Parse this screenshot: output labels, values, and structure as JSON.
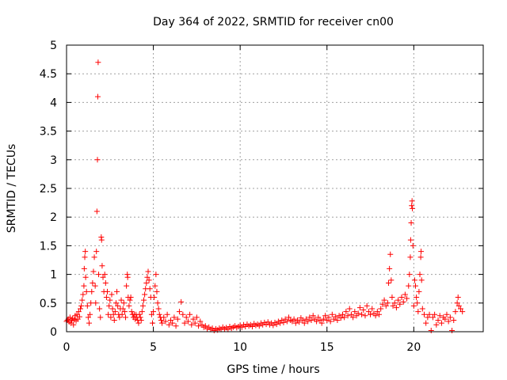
{
  "chart_data": {
    "type": "scatter",
    "title": "Day 364 of 2022, SRMTID for receiver cn00",
    "xlabel": "GPS time / hours",
    "ylabel": "SRMTID / TECUs",
    "xlim": [
      0,
      24
    ],
    "ylim": [
      0,
      5
    ],
    "xticks": [
      0,
      5,
      10,
      15,
      20
    ],
    "xtick_labels": [
      "0",
      "5",
      "10",
      "15",
      "20"
    ],
    "yticks": [
      0,
      0.5,
      1,
      1.5,
      2,
      2.5,
      3,
      3.5,
      4,
      4.5,
      5
    ],
    "ytick_labels": [
      "0",
      "0.5",
      "1",
      "1.5",
      "2",
      "2.5",
      "3",
      "3.5",
      "4",
      "4.5",
      "5"
    ],
    "grid": true,
    "marker": "+",
    "color": "#ff0000",
    "series": [
      {
        "name": "cn00",
        "points": [
          [
            0.0,
            0.18
          ],
          [
            0.05,
            0.2
          ],
          [
            0.1,
            0.22
          ],
          [
            0.15,
            0.17
          ],
          [
            0.2,
            0.25
          ],
          [
            0.25,
            0.15
          ],
          [
            0.3,
            0.2
          ],
          [
            0.35,
            0.23
          ],
          [
            0.4,
            0.12
          ],
          [
            0.45,
            0.21
          ],
          [
            0.5,
            0.28
          ],
          [
            0.55,
            0.19
          ],
          [
            0.6,
            0.3
          ],
          [
            0.65,
            0.22
          ],
          [
            0.7,
            0.35
          ],
          [
            0.75,
            0.26
          ],
          [
            0.8,
            0.4
          ],
          [
            0.85,
            0.45
          ],
          [
            0.9,
            0.55
          ],
          [
            0.95,
            0.65
          ],
          [
            1.0,
            0.8
          ],
          [
            1.02,
            1.1
          ],
          [
            1.05,
            1.3
          ],
          [
            1.08,
            1.4
          ],
          [
            1.1,
            0.95
          ],
          [
            1.15,
            0.7
          ],
          [
            1.2,
            0.45
          ],
          [
            1.25,
            0.25
          ],
          [
            1.3,
            0.15
          ],
          [
            1.35,
            0.3
          ],
          [
            1.4,
            0.5
          ],
          [
            1.45,
            0.7
          ],
          [
            1.5,
            0.85
          ],
          [
            1.55,
            1.05
          ],
          [
            1.6,
            1.3
          ],
          [
            1.65,
            0.8
          ],
          [
            1.68,
            0.5
          ],
          [
            1.72,
            1.4
          ],
          [
            1.75,
            2.1
          ],
          [
            1.78,
            3.0
          ],
          [
            1.8,
            4.1
          ],
          [
            1.82,
            4.7
          ],
          [
            1.85,
            1.0
          ],
          [
            1.9,
            0.4
          ],
          [
            1.95,
            0.25
          ],
          [
            2.0,
            1.65
          ],
          [
            2.02,
            1.6
          ],
          [
            2.05,
            1.15
          ],
          [
            2.1,
            0.95
          ],
          [
            2.15,
            0.7
          ],
          [
            2.2,
            1.0
          ],
          [
            2.25,
            0.85
          ],
          [
            2.3,
            0.6
          ],
          [
            2.35,
            0.7
          ],
          [
            2.4,
            0.3
          ],
          [
            2.45,
            0.45
          ],
          [
            2.5,
            0.55
          ],
          [
            2.55,
            0.25
          ],
          [
            2.6,
            0.65
          ],
          [
            2.65,
            0.4
          ],
          [
            2.7,
            0.3
          ],
          [
            2.75,
            0.2
          ],
          [
            2.8,
            0.35
          ],
          [
            2.85,
            0.5
          ],
          [
            2.9,
            0.7
          ],
          [
            2.95,
            0.45
          ],
          [
            3.0,
            0.3
          ],
          [
            3.05,
            0.25
          ],
          [
            3.1,
            0.4
          ],
          [
            3.15,
            0.55
          ],
          [
            3.2,
            0.3
          ],
          [
            3.25,
            0.4
          ],
          [
            3.3,
            0.5
          ],
          [
            3.35,
            0.35
          ],
          [
            3.4,
            0.25
          ],
          [
            3.45,
            0.8
          ],
          [
            3.5,
            1.0
          ],
          [
            3.52,
            0.95
          ],
          [
            3.55,
            0.6
          ],
          [
            3.6,
            0.45
          ],
          [
            3.65,
            0.55
          ],
          [
            3.7,
            0.6
          ],
          [
            3.75,
            0.35
          ],
          [
            3.8,
            0.3
          ],
          [
            3.85,
            0.25
          ],
          [
            3.9,
            0.3
          ],
          [
            3.95,
            0.22
          ],
          [
            4.0,
            0.3
          ],
          [
            4.05,
            0.25
          ],
          [
            4.1,
            0.2
          ],
          [
            4.15,
            0.15
          ],
          [
            4.2,
            0.3
          ],
          [
            4.25,
            0.25
          ],
          [
            4.3,
            0.2
          ],
          [
            4.35,
            0.35
          ],
          [
            4.4,
            0.45
          ],
          [
            4.45,
            0.55
          ],
          [
            4.5,
            0.65
          ],
          [
            4.55,
            0.75
          ],
          [
            4.6,
            0.85
          ],
          [
            4.65,
            0.95
          ],
          [
            4.7,
            1.05
          ],
          [
            4.75,
            0.9
          ],
          [
            4.8,
            0.75
          ],
          [
            4.85,
            0.6
          ],
          [
            4.9,
            0.3
          ],
          [
            4.95,
            0.15
          ],
          [
            5.0,
            0.35
          ],
          [
            5.05,
            0.6
          ],
          [
            5.1,
            0.8
          ],
          [
            5.15,
            1.0
          ],
          [
            5.2,
            0.7
          ],
          [
            5.25,
            0.5
          ],
          [
            5.3,
            0.4
          ],
          [
            5.35,
            0.3
          ],
          [
            5.4,
            0.25
          ],
          [
            5.45,
            0.2
          ],
          [
            5.5,
            0.15
          ],
          [
            5.6,
            0.25
          ],
          [
            5.7,
            0.18
          ],
          [
            5.8,
            0.3
          ],
          [
            5.9,
            0.12
          ],
          [
            6.0,
            0.2
          ],
          [
            6.1,
            0.15
          ],
          [
            6.2,
            0.25
          ],
          [
            6.3,
            0.1
          ],
          [
            6.4,
            0.22
          ],
          [
            6.5,
            0.35
          ],
          [
            6.6,
            0.52
          ],
          [
            6.7,
            0.3
          ],
          [
            6.8,
            0.15
          ],
          [
            6.9,
            0.25
          ],
          [
            7.0,
            0.18
          ],
          [
            7.1,
            0.3
          ],
          [
            7.2,
            0.12
          ],
          [
            7.3,
            0.22
          ],
          [
            7.4,
            0.15
          ],
          [
            7.5,
            0.25
          ],
          [
            7.6,
            0.1
          ],
          [
            7.7,
            0.18
          ],
          [
            7.8,
            0.12
          ],
          [
            7.9,
            0.08
          ],
          [
            8.0,
            0.1
          ],
          [
            8.1,
            0.05
          ],
          [
            8.2,
            0.08
          ],
          [
            8.3,
            0.04
          ],
          [
            8.4,
            0.06
          ],
          [
            8.5,
            0.02
          ],
          [
            8.6,
            0.05
          ],
          [
            8.7,
            0.03
          ],
          [
            8.8,
            0.06
          ],
          [
            8.9,
            0.04
          ],
          [
            9.0,
            0.08
          ],
          [
            9.1,
            0.05
          ],
          [
            9.2,
            0.07
          ],
          [
            9.3,
            0.04
          ],
          [
            9.4,
            0.09
          ],
          [
            9.5,
            0.06
          ],
          [
            9.6,
            0.08
          ],
          [
            9.7,
            0.1
          ],
          [
            9.8,
            0.07
          ],
          [
            9.9,
            0.09
          ],
          [
            10.0,
            0.11
          ],
          [
            10.1,
            0.08
          ],
          [
            10.2,
            0.12
          ],
          [
            10.3,
            0.09
          ],
          [
            10.4,
            0.13
          ],
          [
            10.5,
            0.1
          ],
          [
            10.6,
            0.12
          ],
          [
            10.7,
            0.09
          ],
          [
            10.8,
            0.14
          ],
          [
            10.9,
            0.11
          ],
          [
            11.0,
            0.13
          ],
          [
            11.1,
            0.1
          ],
          [
            11.2,
            0.15
          ],
          [
            11.3,
            0.12
          ],
          [
            11.4,
            0.16
          ],
          [
            11.5,
            0.13
          ],
          [
            11.6,
            0.17
          ],
          [
            11.7,
            0.12
          ],
          [
            11.8,
            0.15
          ],
          [
            11.9,
            0.11
          ],
          [
            12.0,
            0.16
          ],
          [
            12.1,
            0.13
          ],
          [
            12.2,
            0.18
          ],
          [
            12.3,
            0.15
          ],
          [
            12.4,
            0.2
          ],
          [
            12.5,
            0.16
          ],
          [
            12.6,
            0.22
          ],
          [
            12.7,
            0.18
          ],
          [
            12.8,
            0.25
          ],
          [
            12.9,
            0.2
          ],
          [
            13.0,
            0.18
          ],
          [
            13.1,
            0.22
          ],
          [
            13.2,
            0.15
          ],
          [
            13.3,
            0.2
          ],
          [
            13.4,
            0.17
          ],
          [
            13.5,
            0.24
          ],
          [
            13.6,
            0.2
          ],
          [
            13.7,
            0.15
          ],
          [
            13.8,
            0.22
          ],
          [
            13.9,
            0.18
          ],
          [
            14.0,
            0.25
          ],
          [
            14.1,
            0.2
          ],
          [
            14.2,
            0.28
          ],
          [
            14.3,
            0.22
          ],
          [
            14.4,
            0.18
          ],
          [
            14.5,
            0.25
          ],
          [
            14.6,
            0.2
          ],
          [
            14.7,
            0.15
          ],
          [
            14.8,
            0.22
          ],
          [
            14.9,
            0.28
          ],
          [
            15.0,
            0.2
          ],
          [
            15.1,
            0.25
          ],
          [
            15.2,
            0.18
          ],
          [
            15.3,
            0.3
          ],
          [
            15.4,
            0.22
          ],
          [
            15.5,
            0.26
          ],
          [
            15.6,
            0.2
          ],
          [
            15.7,
            0.28
          ],
          [
            15.8,
            0.24
          ],
          [
            15.9,
            0.3
          ],
          [
            16.0,
            0.25
          ],
          [
            16.1,
            0.35
          ],
          [
            16.2,
            0.28
          ],
          [
            16.3,
            0.4
          ],
          [
            16.4,
            0.3
          ],
          [
            16.5,
            0.25
          ],
          [
            16.6,
            0.35
          ],
          [
            16.7,
            0.28
          ],
          [
            16.8,
            0.32
          ],
          [
            16.9,
            0.42
          ],
          [
            17.0,
            0.3
          ],
          [
            17.1,
            0.38
          ],
          [
            17.2,
            0.28
          ],
          [
            17.3,
            0.45
          ],
          [
            17.4,
            0.35
          ],
          [
            17.5,
            0.3
          ],
          [
            17.6,
            0.4
          ],
          [
            17.7,
            0.32
          ],
          [
            17.8,
            0.28
          ],
          [
            17.9,
            0.35
          ],
          [
            18.0,
            0.3
          ],
          [
            18.1,
            0.4
          ],
          [
            18.2,
            0.48
          ],
          [
            18.3,
            0.55
          ],
          [
            18.4,
            0.45
          ],
          [
            18.5,
            0.5
          ],
          [
            18.55,
            0.85
          ],
          [
            18.6,
            1.1
          ],
          [
            18.65,
            1.35
          ],
          [
            18.7,
            0.9
          ],
          [
            18.75,
            0.6
          ],
          [
            18.8,
            0.45
          ],
          [
            18.9,
            0.5
          ],
          [
            19.0,
            0.42
          ],
          [
            19.1,
            0.55
          ],
          [
            19.2,
            0.48
          ],
          [
            19.3,
            0.6
          ],
          [
            19.4,
            0.52
          ],
          [
            19.5,
            0.65
          ],
          [
            19.6,
            0.58
          ],
          [
            19.7,
            0.8
          ],
          [
            19.75,
            1.0
          ],
          [
            19.8,
            1.3
          ],
          [
            19.82,
            1.6
          ],
          [
            19.85,
            1.9
          ],
          [
            19.88,
            2.2
          ],
          [
            19.9,
            2.28
          ],
          [
            19.92,
            2.15
          ],
          [
            19.95,
            1.5
          ],
          [
            20.0,
            0.45
          ],
          [
            20.05,
            0.9
          ],
          [
            20.1,
            0.8
          ],
          [
            20.15,
            0.6
          ],
          [
            20.2,
            0.5
          ],
          [
            20.25,
            0.35
          ],
          [
            20.3,
            0.7
          ],
          [
            20.35,
            1.0
          ],
          [
            20.4,
            1.3
          ],
          [
            20.42,
            1.4
          ],
          [
            20.45,
            0.9
          ],
          [
            20.5,
            0.4
          ],
          [
            20.6,
            0.3
          ],
          [
            20.7,
            0.15
          ],
          [
            20.8,
            0.25
          ],
          [
            20.9,
            0.3
          ],
          [
            21.0,
            0.02
          ],
          [
            21.1,
            0.25
          ],
          [
            21.2,
            0.3
          ],
          [
            21.3,
            0.12
          ],
          [
            21.4,
            0.2
          ],
          [
            21.5,
            0.28
          ],
          [
            21.6,
            0.15
          ],
          [
            21.7,
            0.25
          ],
          [
            21.8,
            0.22
          ],
          [
            21.9,
            0.3
          ],
          [
            22.0,
            0.18
          ],
          [
            22.1,
            0.25
          ],
          [
            22.2,
            0.02
          ],
          [
            22.3,
            0.2
          ],
          [
            22.4,
            0.35
          ],
          [
            22.5,
            0.5
          ],
          [
            22.55,
            0.6
          ],
          [
            22.6,
            0.45
          ],
          [
            22.7,
            0.4
          ],
          [
            22.8,
            0.35
          ]
        ]
      }
    ]
  }
}
